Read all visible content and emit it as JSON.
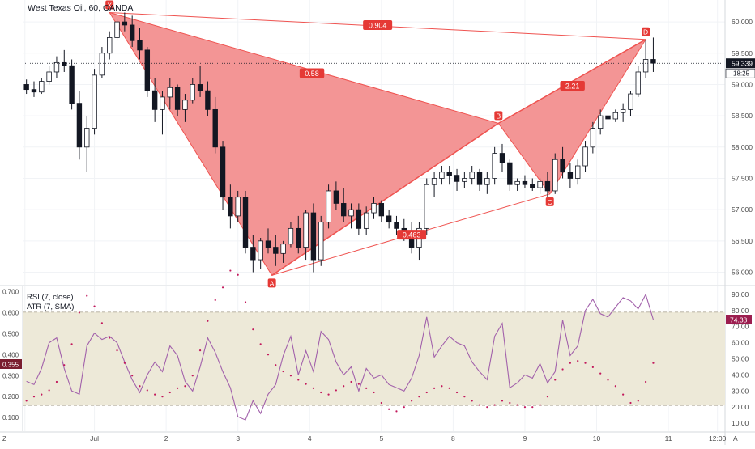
{
  "header": {
    "title": "West Texas Oil, 60, OANDA"
  },
  "colors": {
    "pattern_fill": "#f28f8f",
    "pattern_stroke": "#ef5350",
    "label_bg": "#e53935",
    "candle": "#131722",
    "rsi_line": "#a261ab",
    "atr_dots": "#c2185b",
    "band_fill": "#ede9d8",
    "grid": "#f1f3f6",
    "axis_text": "#4a4a4a",
    "price_tag": "#131722",
    "rsi_tag": "#9c1d4f",
    "atr_tag": "#7a1e2f"
  },
  "chart_data": [
    {
      "type": "candlestick",
      "title": "West Texas Oil, 60, OANDA",
      "xlabel": "",
      "ylabel": "",
      "ylim": [
        55.8,
        60.35
      ],
      "y_ticks": [
        "60.000",
        "59.500",
        "59.000",
        "58.500",
        "58.000",
        "57.500",
        "57.000",
        "56.500",
        "56.000"
      ],
      "y_tick_values": [
        60.0,
        59.5,
        59.0,
        58.5,
        58.0,
        57.5,
        57.0,
        56.5,
        56.0
      ],
      "x_tick_labels": [
        "Z",
        "Jul",
        "2",
        "3",
        "4",
        "5",
        "8",
        "9",
        "10",
        "11",
        "12:00"
      ],
      "x_tick_positions": [
        0.3,
        9.5,
        19,
        28.5,
        38,
        47.5,
        57,
        66.5,
        76,
        85.5,
        92
      ],
      "last_price": "59.339",
      "countdown": "18:25",
      "pattern": {
        "name": "XABCD",
        "points": [
          {
            "label": "X",
            "t": 11.5,
            "price": 60.15
          },
          {
            "label": "A",
            "t": 33,
            "price": 55.95
          },
          {
            "label": "B",
            "t": 63,
            "price": 58.38
          },
          {
            "label": "C",
            "t": 69.8,
            "price": 57.25
          },
          {
            "label": "D",
            "t": 82.5,
            "price": 59.72
          }
        ],
        "ratios": [
          {
            "text": "0.904",
            "t": 47,
            "price": 59.95
          },
          {
            "text": "0.58",
            "t": 38.3,
            "price": 59.18
          },
          {
            "text": "0.463",
            "t": 51.5,
            "price": 56.6
          },
          {
            "text": "2.21",
            "t": 72.8,
            "price": 58.98
          }
        ]
      },
      "candles": [
        [
          0.5,
          59.0,
          59.08,
          58.85,
          58.92
        ],
        [
          1.5,
          58.92,
          59.05,
          58.8,
          58.88
        ],
        [
          2.5,
          58.88,
          59.1,
          58.85,
          59.05
        ],
        [
          3.5,
          59.05,
          59.3,
          59.0,
          59.2
        ],
        [
          4.5,
          59.2,
          59.45,
          59.1,
          59.35
        ],
        [
          5.5,
          59.35,
          59.55,
          59.2,
          59.3
        ],
        [
          6.5,
          59.3,
          59.4,
          58.6,
          58.7
        ],
        [
          7.5,
          58.7,
          58.9,
          57.8,
          58.0
        ],
        [
          8.5,
          58.0,
          58.5,
          57.6,
          58.3
        ],
        [
          9.5,
          58.3,
          59.25,
          58.2,
          59.15
        ],
        [
          10.5,
          59.15,
          59.6,
          59.1,
          59.5
        ],
        [
          11.5,
          59.5,
          59.85,
          59.4,
          59.75
        ],
        [
          12.5,
          59.75,
          60.05,
          59.7,
          60.0
        ],
        [
          13.5,
          60.0,
          60.15,
          59.85,
          59.95
        ],
        [
          14.5,
          59.95,
          60.1,
          59.6,
          59.7
        ],
        [
          15.5,
          59.7,
          59.9,
          59.4,
          59.55
        ],
        [
          16.5,
          59.55,
          59.6,
          58.8,
          58.9
        ],
        [
          17.5,
          58.9,
          59.1,
          58.4,
          58.6
        ],
        [
          18.5,
          58.6,
          58.9,
          58.2,
          58.8
        ],
        [
          19.5,
          58.8,
          59.1,
          58.6,
          58.95
        ],
        [
          20.5,
          58.95,
          59.0,
          58.5,
          58.6
        ],
        [
          21.5,
          58.6,
          58.85,
          58.4,
          58.75
        ],
        [
          22.5,
          58.75,
          59.1,
          58.7,
          59.0
        ],
        [
          23.5,
          59.0,
          59.3,
          58.8,
          58.9
        ],
        [
          24.5,
          58.9,
          59.05,
          58.5,
          58.6
        ],
        [
          25.5,
          58.6,
          58.8,
          57.9,
          58.0
        ],
        [
          26.5,
          58.0,
          58.1,
          57.0,
          57.2
        ],
        [
          27.5,
          57.2,
          57.4,
          56.7,
          56.9
        ],
        [
          28.5,
          56.9,
          57.3,
          56.8,
          57.2
        ],
        [
          29.5,
          57.2,
          57.3,
          56.3,
          56.4
        ],
        [
          30.5,
          56.4,
          56.6,
          56.0,
          56.2
        ],
        [
          31.5,
          56.2,
          56.55,
          56.05,
          56.5
        ],
        [
          32.5,
          56.5,
          56.7,
          56.3,
          56.4
        ],
        [
          33.5,
          56.4,
          56.6,
          56.1,
          56.3
        ],
        [
          34.5,
          56.3,
          56.5,
          56.15,
          56.45
        ],
        [
          35.5,
          56.45,
          56.8,
          56.4,
          56.7
        ],
        [
          36.5,
          56.7,
          56.9,
          56.3,
          56.4
        ],
        [
          37.5,
          56.4,
          57.0,
          56.2,
          56.95
        ],
        [
          38.5,
          56.95,
          57.1,
          56.0,
          56.2
        ],
        [
          39.5,
          56.2,
          56.9,
          56.1,
          56.8
        ],
        [
          40.5,
          56.8,
          57.4,
          56.7,
          57.3
        ],
        [
          41.5,
          57.3,
          57.45,
          57.0,
          57.1
        ],
        [
          42.5,
          57.1,
          57.35,
          56.8,
          56.9
        ],
        [
          43.5,
          56.9,
          57.1,
          56.7,
          57.0
        ],
        [
          44.5,
          57.0,
          57.1,
          56.6,
          56.7
        ],
        [
          45.5,
          56.7,
          57.05,
          56.6,
          56.95
        ],
        [
          46.5,
          56.95,
          57.2,
          56.85,
          57.1
        ],
        [
          47.5,
          57.1,
          57.15,
          56.8,
          56.9
        ],
        [
          48.5,
          56.9,
          57.0,
          56.7,
          56.8
        ],
        [
          49.5,
          56.8,
          56.9,
          56.6,
          56.7
        ],
        [
          50.5,
          56.7,
          56.85,
          56.5,
          56.6
        ],
        [
          51.5,
          56.6,
          56.8,
          56.3,
          56.4
        ],
        [
          52.5,
          56.4,
          56.8,
          56.2,
          56.7
        ],
        [
          53.5,
          56.7,
          57.5,
          56.6,
          57.4
        ],
        [
          54.5,
          57.4,
          57.6,
          57.2,
          57.5
        ],
        [
          55.5,
          57.5,
          57.7,
          57.4,
          57.6
        ],
        [
          56.5,
          57.6,
          57.7,
          57.4,
          57.55
        ],
        [
          57.5,
          57.55,
          57.65,
          57.3,
          57.45
        ],
        [
          58.5,
          57.45,
          57.6,
          57.35,
          57.5
        ],
        [
          59.5,
          57.5,
          57.7,
          57.4,
          57.6
        ],
        [
          60.5,
          57.6,
          57.65,
          57.3,
          57.4
        ],
        [
          61.5,
          57.4,
          57.6,
          57.25,
          57.5
        ],
        [
          62.5,
          57.5,
          58.0,
          57.4,
          57.9
        ],
        [
          63.5,
          57.9,
          58.05,
          57.6,
          57.75
        ],
        [
          64.5,
          57.75,
          57.8,
          57.3,
          57.4
        ],
        [
          65.5,
          57.4,
          57.5,
          57.3,
          57.45
        ],
        [
          66.5,
          57.45,
          57.55,
          57.35,
          57.4
        ],
        [
          67.5,
          57.4,
          57.5,
          57.3,
          57.35
        ],
        [
          68.5,
          57.35,
          57.5,
          57.25,
          57.45
        ],
        [
          69.5,
          57.45,
          57.6,
          57.2,
          57.3
        ],
        [
          70.5,
          57.3,
          57.9,
          57.25,
          57.8
        ],
        [
          71.5,
          57.8,
          58.0,
          57.5,
          57.6
        ],
        [
          72.5,
          57.6,
          57.75,
          57.35,
          57.5
        ],
        [
          73.5,
          57.5,
          57.8,
          57.4,
          57.7
        ],
        [
          74.5,
          57.7,
          58.1,
          57.6,
          58.0
        ],
        [
          75.5,
          58.0,
          58.4,
          57.9,
          58.3
        ],
        [
          76.5,
          58.3,
          58.6,
          58.2,
          58.5
        ],
        [
          77.5,
          58.5,
          58.6,
          58.3,
          58.45
        ],
        [
          78.5,
          58.45,
          58.6,
          58.4,
          58.55
        ],
        [
          79.5,
          58.55,
          58.7,
          58.4,
          58.6
        ],
        [
          80.5,
          58.6,
          58.9,
          58.5,
          58.85
        ],
        [
          81.5,
          58.85,
          59.3,
          58.8,
          59.2
        ],
        [
          82.5,
          59.2,
          59.7,
          59.1,
          59.4
        ],
        [
          83.5,
          59.4,
          59.75,
          59.2,
          59.34
        ]
      ]
    },
    {
      "type": "line",
      "indicators": [
        "RSI (7, close)",
        "ATR (7, SMA)"
      ],
      "rsi_ylim": [
        5,
        95
      ],
      "rsi_ticks": [
        "90.00",
        "80.00",
        "70.00",
        "60.00",
        "50.00",
        "40.00",
        "30.00",
        "20.00",
        "10.00"
      ],
      "rsi_tick_values": [
        90,
        80,
        70,
        60,
        50,
        40,
        30,
        20,
        10
      ],
      "atr_ticks": [
        "0.700",
        "0.600",
        "0.500",
        "0.400",
        "0.300",
        "0.200",
        "0.100"
      ],
      "atr_tick_values": [
        0.7,
        0.6,
        0.5,
        0.4,
        0.3,
        0.2,
        0.1
      ],
      "atr_ylim": [
        0.035,
        0.725
      ],
      "band": [
        21,
        79
      ],
      "rsi_last": "74.38",
      "atr_last": "0.355",
      "rsi": [
        36,
        34,
        44,
        60,
        63,
        44,
        30,
        28,
        58,
        66,
        62,
        64,
        60,
        48,
        37,
        29,
        40,
        48,
        42,
        58,
        52,
        36,
        30,
        45,
        63,
        54,
        42,
        32,
        14,
        12,
        24,
        16,
        28,
        34,
        52,
        64,
        40,
        55,
        42,
        67,
        62,
        48,
        40,
        45,
        30,
        44,
        38,
        40,
        34,
        32,
        30,
        38,
        52,
        76,
        51,
        58,
        64,
        60,
        58,
        48,
        42,
        37,
        64,
        72,
        32,
        35,
        40,
        38,
        47,
        35,
        42,
        74,
        52,
        58,
        80,
        87,
        78,
        76,
        82,
        88,
        86,
        81,
        90,
        74.4
      ],
      "atr": [
        0.18,
        0.2,
        0.21,
        0.23,
        0.27,
        0.35,
        0.45,
        0.6,
        0.68,
        0.63,
        0.55,
        0.48,
        0.42,
        0.36,
        0.3,
        0.25,
        0.23,
        0.21,
        0.2,
        0.22,
        0.24,
        0.25,
        0.3,
        0.42,
        0.56,
        0.66,
        0.72,
        0.8,
        0.78,
        0.65,
        0.52,
        0.45,
        0.4,
        0.35,
        0.32,
        0.3,
        0.28,
        0.26,
        0.24,
        0.22,
        0.21,
        0.23,
        0.25,
        0.27,
        0.26,
        0.24,
        0.22,
        0.17,
        0.14,
        0.13,
        0.15,
        0.18,
        0.2,
        0.22,
        0.24,
        0.25,
        0.24,
        0.22,
        0.2,
        0.18,
        0.16,
        0.15,
        0.16,
        0.18,
        0.17,
        0.16,
        0.15,
        0.15,
        0.16,
        0.2,
        0.28,
        0.33,
        0.36,
        0.37,
        0.36,
        0.34,
        0.31,
        0.28,
        0.25,
        0.21,
        0.17,
        0.18,
        0.27,
        0.36
      ]
    }
  ]
}
